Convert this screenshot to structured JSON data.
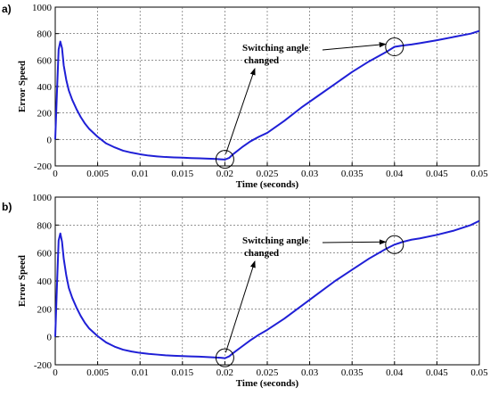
{
  "chart_data": [
    {
      "type": "line",
      "panel_label": "a)",
      "title": "",
      "xlabel": "Time (seconds)",
      "ylabel": "Error Speed",
      "xlim": [
        0,
        0.05
      ],
      "ylim": [
        -200,
        1000
      ],
      "grid": true,
      "xticks": [
        0,
        0.005,
        0.01,
        0.015,
        0.02,
        0.025,
        0.03,
        0.035,
        0.04,
        0.045,
        0.05
      ],
      "xtick_labels": [
        "0",
        "0.005",
        "0.01",
        "0.015",
        "0.02",
        "0.025",
        "0.03",
        "0.035",
        "0.04",
        "0.045",
        "0.05"
      ],
      "yticks": [
        -200,
        0,
        200,
        400,
        600,
        800,
        1000
      ],
      "ytick_labels": [
        "-200",
        "0",
        "200",
        "400",
        "600",
        "800",
        "1000"
      ],
      "series": [
        {
          "color": "#1f1fd6",
          "x": [
            0,
            0.0002,
            0.0004,
            0.0006,
            0.0008,
            0.001,
            0.0013,
            0.0016,
            0.002,
            0.0025,
            0.003,
            0.0035,
            0.004,
            0.005,
            0.006,
            0.007,
            0.008,
            0.009,
            0.01,
            0.011,
            0.012,
            0.013,
            0.014,
            0.015,
            0.016,
            0.017,
            0.018,
            0.019,
            0.0195,
            0.02,
            0.0205,
            0.021,
            0.022,
            0.023,
            0.024,
            0.025,
            0.027,
            0.029,
            0.031,
            0.033,
            0.035,
            0.037,
            0.039,
            0.04,
            0.041,
            0.042,
            0.043,
            0.045,
            0.047,
            0.049,
            0.05
          ],
          "y": [
            0,
            350,
            680,
            740,
            690,
            560,
            450,
            370,
            300,
            230,
            170,
            120,
            80,
            20,
            -30,
            -60,
            -85,
            -100,
            -112,
            -122,
            -128,
            -133,
            -136,
            -138,
            -141,
            -143,
            -145,
            -148,
            -150,
            -152,
            -140,
            -110,
            -60,
            -15,
            20,
            50,
            140,
            240,
            330,
            420,
            510,
            590,
            660,
            700,
            710,
            718,
            728,
            750,
            775,
            800,
            820
          ]
        }
      ],
      "annotations": [
        {
          "text": "Switching angle",
          "text2": "changed",
          "points_to_x": [
            0.02,
            0.04
          ],
          "points_to_y": [
            -150,
            700
          ]
        }
      ]
    },
    {
      "type": "line",
      "panel_label": "b)",
      "title": "",
      "xlabel": "Time (seconds)",
      "ylabel": "Error Speed",
      "xlim": [
        0,
        0.05
      ],
      "ylim": [
        -200,
        1000
      ],
      "grid": true,
      "xticks": [
        0,
        0.005,
        0.01,
        0.015,
        0.02,
        0.025,
        0.03,
        0.035,
        0.04,
        0.045,
        0.05
      ],
      "xtick_labels": [
        "0",
        "0.005",
        "0.01",
        "0.015",
        "0.02",
        "0.025",
        "0.03",
        "0.035",
        "0.04",
        "0.045",
        "0.05"
      ],
      "yticks": [
        -200,
        0,
        200,
        400,
        600,
        800,
        1000
      ],
      "ytick_labels": [
        "-200",
        "0",
        "200",
        "400",
        "600",
        "800",
        "1000"
      ],
      "series": [
        {
          "color": "#1f1fd6",
          "x": [
            0,
            0.0002,
            0.0004,
            0.0006,
            0.0008,
            0.001,
            0.0013,
            0.0016,
            0.002,
            0.0025,
            0.003,
            0.0035,
            0.004,
            0.005,
            0.006,
            0.007,
            0.008,
            0.009,
            0.01,
            0.011,
            0.012,
            0.013,
            0.014,
            0.015,
            0.016,
            0.017,
            0.018,
            0.019,
            0.0195,
            0.02,
            0.0205,
            0.021,
            0.022,
            0.023,
            0.024,
            0.025,
            0.027,
            0.029,
            0.031,
            0.033,
            0.035,
            0.037,
            0.039,
            0.04,
            0.041,
            0.042,
            0.043,
            0.045,
            0.047,
            0.049,
            0.05
          ],
          "y": [
            0,
            360,
            690,
            740,
            680,
            560,
            440,
            350,
            280,
            210,
            150,
            100,
            60,
            5,
            -40,
            -70,
            -92,
            -105,
            -115,
            -122,
            -127,
            -132,
            -135,
            -138,
            -140,
            -142,
            -145,
            -148,
            -150,
            -153,
            -140,
            -115,
            -70,
            -25,
            15,
            50,
            130,
            220,
            310,
            400,
            480,
            560,
            630,
            660,
            680,
            695,
            705,
            730,
            760,
            800,
            830
          ]
        }
      ],
      "annotations": [
        {
          "text": "Switching angle",
          "text2": "changed",
          "points_to_x": [
            0.02,
            0.04
          ],
          "points_to_y": [
            -150,
            660
          ]
        }
      ]
    }
  ]
}
